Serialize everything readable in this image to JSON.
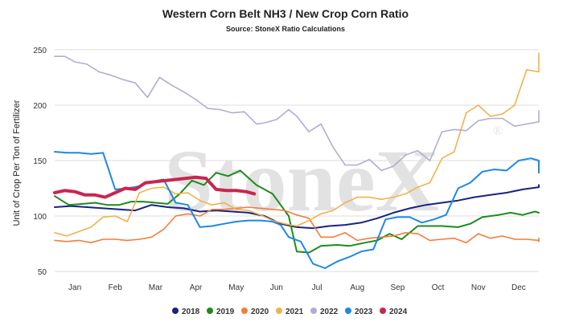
{
  "chart_data": {
    "type": "line",
    "title": "Western Corn Belt NH3 / New Crop Corn Ratio",
    "subtitle": "Source: StoneX Ratio Calculations",
    "ylabel": "Unit of Crop Per Ton of Fertilizer",
    "watermark": "StoneX",
    "watermark_mark": "®",
    "ylim": [
      45,
      255
    ],
    "yticks": [
      50,
      100,
      150,
      200,
      250
    ],
    "xlim": [
      0,
      12
    ],
    "xticks": [
      {
        "label": "Jan",
        "pos": 0.5
      },
      {
        "label": "Feb",
        "pos": 1.5
      },
      {
        "label": "Mar",
        "pos": 2.5
      },
      {
        "label": "Apr",
        "pos": 3.5
      },
      {
        "label": "May",
        "pos": 4.5
      },
      {
        "label": "Jun",
        "pos": 5.5
      },
      {
        "label": "Jul",
        "pos": 6.5
      },
      {
        "label": "Aug",
        "pos": 7.5
      },
      {
        "label": "Sep",
        "pos": 8.5
      },
      {
        "label": "Oct",
        "pos": 9.5
      },
      {
        "label": "Nov",
        "pos": 10.5
      },
      {
        "label": "Dec",
        "pos": 11.5
      }
    ],
    "grid": "horizontal",
    "legend_position": "bottom",
    "series": [
      {
        "name": "2018",
        "color": "#1a237e",
        "width": 2,
        "x": [
          0,
          0.4,
          0.8,
          1.2,
          1.6,
          2.0,
          2.4,
          2.8,
          3.2,
          3.6,
          4.0,
          4.4,
          4.8,
          5.2,
          5.6,
          6.0,
          6.4,
          6.8,
          7.2,
          7.6,
          8.0,
          8.4,
          8.8,
          9.2,
          9.6,
          10.0,
          10.4,
          10.8,
          11.2,
          11.6,
          12.0,
          12.4
        ],
        "y": [
          108,
          109,
          108,
          107,
          106,
          105,
          110,
          108,
          107,
          104,
          105,
          104,
          103,
          100,
          93,
          90,
          89,
          91,
          92,
          94,
          98,
          103,
          107,
          110,
          112,
          114,
          117,
          119,
          121,
          124,
          126,
          128
        ]
      },
      {
        "name": "2019",
        "color": "#1b8c1b",
        "width": 2,
        "x": [
          0,
          0.35,
          0.7,
          1.0,
          1.3,
          1.6,
          1.9,
          2.2,
          2.5,
          2.8,
          3.1,
          3.4,
          3.7,
          4.0,
          4.3,
          4.6,
          5.0,
          5.4,
          5.8,
          6.0,
          6.3,
          6.6,
          7.0,
          7.3,
          7.7,
          8.0,
          8.3,
          8.6,
          9.0,
          9.3,
          9.6,
          10.0,
          10.3,
          10.6,
          11.0,
          11.3,
          11.6,
          11.9,
          12.0
        ],
        "y": [
          118,
          110,
          111,
          112,
          110,
          110,
          113,
          113,
          112,
          111,
          120,
          132,
          128,
          139,
          136,
          141,
          128,
          120,
          100,
          68,
          67,
          73,
          74,
          73,
          76,
          78,
          84,
          79,
          91,
          91,
          91,
          90,
          93,
          99,
          101,
          103,
          101,
          104,
          103
        ]
      },
      {
        "name": "2020",
        "color": "#f57c3c",
        "width": 1.6,
        "x": [
          0,
          0.3,
          0.6,
          0.9,
          1.2,
          1.5,
          1.8,
          2.1,
          2.4,
          2.7,
          3.0,
          3.3,
          3.6,
          3.9,
          4.2,
          4.5,
          4.8,
          5.1,
          5.4,
          5.7,
          6.0,
          6.3,
          6.6,
          6.9,
          7.2,
          7.5,
          7.8,
          8.1,
          8.4,
          8.7,
          9.0,
          9.3,
          9.6,
          9.9,
          10.2,
          10.5,
          10.8,
          11.1,
          11.4,
          11.7,
          12.0,
          12.3,
          12.6
        ],
        "y": [
          78,
          77,
          78,
          76,
          79,
          79,
          78,
          79,
          81,
          88,
          100,
          102,
          100,
          106,
          106,
          107,
          108,
          107,
          106,
          105,
          101,
          98,
          81,
          81,
          85,
          78,
          80,
          81,
          82,
          85,
          84,
          78,
          79,
          80,
          76,
          84,
          80,
          82,
          79,
          79,
          78,
          80,
          77
        ]
      },
      {
        "name": "2021",
        "color": "#f2b24a",
        "width": 1.6,
        "x": [
          0,
          0.3,
          0.6,
          0.9,
          1.2,
          1.5,
          1.8,
          2.1,
          2.4,
          2.7,
          3.0,
          3.3,
          3.6,
          3.9,
          4.2,
          4.5,
          4.8,
          5.1,
          5.4,
          5.7,
          6.0,
          6.3,
          6.6,
          6.9,
          7.2,
          7.5,
          7.8,
          8.1,
          8.4,
          8.7,
          9.0,
          9.3,
          9.6,
          9.9,
          10.2,
          10.5,
          10.8,
          11.1,
          11.4,
          11.7,
          12.0,
          12.3,
          12.6
        ],
        "y": [
          85,
          82,
          86,
          90,
          99,
          100,
          95,
          121,
          125,
          126,
          120,
          121,
          114,
          110,
          112,
          106,
          105,
          101,
          96,
          93,
          91,
          96,
          102,
          105,
          112,
          117,
          117,
          115,
          117,
          120,
          126,
          130,
          152,
          158,
          193,
          200,
          190,
          192,
          200,
          232,
          230,
          230,
          247
        ]
      },
      {
        "name": "2022",
        "color": "#b0aed0",
        "width": 1.6,
        "x": [
          0,
          0.25,
          0.5,
          0.8,
          1.1,
          1.4,
          1.7,
          2.0,
          2.3,
          2.6,
          2.9,
          3.2,
          3.5,
          3.8,
          4.1,
          4.4,
          4.7,
          5.0,
          5.2,
          5.5,
          5.8,
          6.0,
          6.3,
          6.6,
          6.9,
          7.2,
          7.5,
          7.8,
          8.1,
          8.4,
          8.7,
          9.0,
          9.3,
          9.6,
          9.9,
          10.2,
          10.5,
          10.8,
          11.1,
          11.4,
          11.7,
          12.0,
          12.3,
          12.6
        ],
        "y": [
          244,
          244,
          239,
          237,
          230,
          227,
          223,
          220,
          207,
          225,
          218,
          212,
          205,
          197,
          196,
          193,
          194,
          183,
          184,
          187,
          196,
          190,
          176,
          183,
          162,
          146,
          146,
          151,
          141,
          145,
          155,
          159,
          150,
          176,
          178,
          177,
          186,
          188,
          188,
          181,
          183,
          185,
          195,
          192
        ]
      },
      {
        "name": "2023",
        "color": "#1e88e5",
        "width": 2,
        "x": [
          0,
          0.3,
          0.6,
          0.9,
          1.2,
          1.5,
          1.8,
          2.1,
          2.4,
          2.7,
          3.0,
          3.3,
          3.6,
          3.9,
          4.2,
          4.5,
          4.8,
          5.1,
          5.4,
          5.6,
          5.8,
          6.1,
          6.4,
          6.7,
          7.0,
          7.3,
          7.6,
          7.9,
          8.2,
          8.5,
          8.8,
          9.1,
          9.4,
          9.7,
          10.0,
          10.3,
          10.6,
          10.9,
          11.2,
          11.5,
          11.8,
          12.0,
          12.3
        ],
        "y": [
          158,
          157,
          157,
          156,
          157,
          124,
          125,
          127,
          131,
          133,
          112,
          110,
          90,
          91,
          93,
          95,
          96,
          96,
          95,
          92,
          81,
          77,
          57,
          53,
          59,
          63,
          68,
          70,
          97,
          99,
          99,
          94,
          97,
          101,
          125,
          130,
          140,
          142,
          141,
          150,
          152,
          150,
          139
        ]
      },
      {
        "name": "2024",
        "color": "#c8264f",
        "width": 4,
        "x": [
          0,
          0.25,
          0.5,
          0.75,
          1.0,
          1.25,
          1.5,
          1.75,
          2.0,
          2.25,
          2.5,
          2.75,
          3.0,
          3.25,
          3.5,
          3.75,
          4.0,
          4.25,
          4.5,
          4.75,
          4.95
        ],
        "y": [
          121,
          123,
          122,
          119,
          119,
          117,
          121,
          125,
          124,
          130,
          131,
          132,
          133,
          134,
          135,
          134,
          124,
          123,
          123,
          122,
          120
        ]
      }
    ]
  }
}
